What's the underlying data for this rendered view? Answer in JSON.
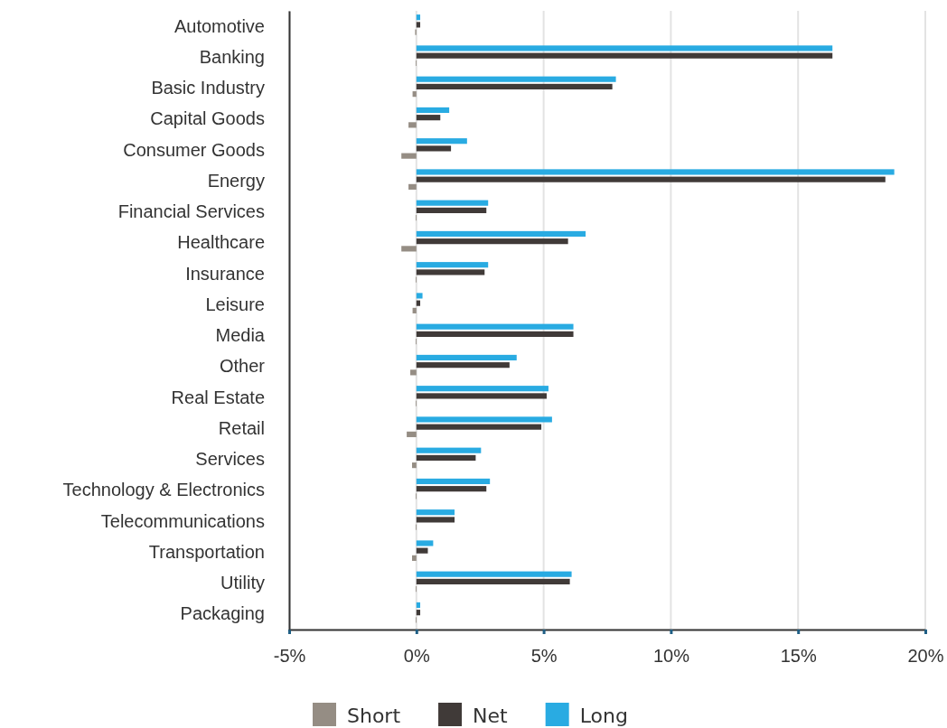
{
  "chart_data": {
    "type": "bar",
    "orientation": "horizontal",
    "categories": [
      "Automotive",
      "Banking",
      "Basic Industry",
      "Capital Goods",
      "Consumer Goods",
      "Energy",
      "Financial Services",
      "Healthcare",
      "Insurance",
      "Leisure",
      "Media",
      "Other",
      "Real Estate",
      "Retail",
      "Services",
      "Technology & Electronics",
      "Telecommunications",
      "Transportation",
      "Utility",
      "Packaging"
    ],
    "series": [
      {
        "name": "Short",
        "color": "#958d84",
        "values": [
          -0.05,
          -0.03,
          -0.15,
          -0.31,
          -0.59,
          -0.31,
          -0.03,
          -0.59,
          -0.03,
          -0.15,
          -0.03,
          -0.24,
          -0.03,
          -0.38,
          -0.17,
          -0.03,
          -0.03,
          -0.17,
          -0.03,
          -0.03
        ]
      },
      {
        "name": "Net",
        "color": "#403a38",
        "values": [
          0.15,
          16.35,
          7.7,
          0.94,
          1.36,
          18.43,
          2.75,
          5.96,
          2.68,
          0.15,
          6.17,
          3.66,
          5.12,
          4.91,
          2.33,
          2.75,
          1.5,
          0.45,
          6.03,
          0.15
        ]
      },
      {
        "name": "Long",
        "color": "#29abe2",
        "values": [
          0.15,
          16.35,
          7.84,
          1.29,
          1.99,
          18.78,
          2.82,
          6.65,
          2.82,
          0.24,
          6.17,
          3.94,
          5.19,
          5.33,
          2.54,
          2.89,
          1.5,
          0.66,
          6.1,
          0.15
        ]
      }
    ],
    "xlim": [
      -5,
      20
    ],
    "xticks": [
      {
        "value": -5,
        "label": "-5%"
      },
      {
        "value": 0,
        "label": "0%"
      },
      {
        "value": 5,
        "label": "5%"
      },
      {
        "value": 10,
        "label": "10%"
      },
      {
        "value": 15,
        "label": "15%"
      },
      {
        "value": 20,
        "label": "20%"
      }
    ],
    "grid": "x",
    "legend": "bottom"
  }
}
